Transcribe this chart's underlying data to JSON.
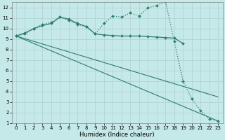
{
  "xlabel": "Humidex (Indice chaleur)",
  "ylabel": "",
  "background_color": "#c5e8e8",
  "grid_color": "#afd0d0",
  "line_color": "#2e7d6e",
  "xlim": [
    -0.5,
    23.5
  ],
  "ylim": [
    1,
    12.5
  ],
  "xticks": [
    0,
    1,
    2,
    3,
    4,
    5,
    6,
    7,
    8,
    9,
    10,
    11,
    12,
    13,
    14,
    15,
    16,
    17,
    18,
    19,
    20,
    21,
    22,
    23
  ],
  "yticks": [
    1,
    2,
    3,
    4,
    5,
    6,
    7,
    8,
    9,
    10,
    11,
    12
  ],
  "series": [
    {
      "x": [
        0,
        1,
        2,
        3,
        4,
        5,
        6,
        7,
        8,
        9,
        10,
        11,
        12,
        13,
        14,
        15,
        16,
        17,
        18,
        19
      ],
      "y": [
        9.3,
        9.6,
        10.0,
        10.3,
        10.5,
        11.1,
        10.9,
        10.5,
        10.2,
        9.5,
        9.4,
        9.35,
        9.3,
        9.3,
        9.3,
        9.25,
        9.2,
        9.15,
        9.1,
        8.6
      ],
      "marker": "D",
      "linestyle": "-",
      "markersize": 2.0,
      "linewidth": 0.9
    },
    {
      "x": [
        0,
        1,
        2,
        3,
        4,
        5,
        6,
        7,
        8,
        9,
        10,
        11,
        12,
        13,
        14,
        15,
        16,
        17,
        18,
        19,
        20,
        21,
        22,
        23
      ],
      "y": [
        9.3,
        9.5,
        10.0,
        10.4,
        10.6,
        11.1,
        10.8,
        10.4,
        10.2,
        9.5,
        10.5,
        11.2,
        11.1,
        11.5,
        11.2,
        12.0,
        12.2,
        12.6,
        8.8,
        5.0,
        3.3,
        2.2,
        1.4,
        1.2
      ],
      "marker": "D",
      "linestyle": ":",
      "markersize": 2.0,
      "linewidth": 0.9
    },
    {
      "x": [
        0,
        23
      ],
      "y": [
        9.3,
        1.2
      ],
      "marker": null,
      "linestyle": "-",
      "markersize": 0,
      "linewidth": 0.8
    },
    {
      "x": [
        0,
        23
      ],
      "y": [
        9.3,
        3.5
      ],
      "marker": null,
      "linestyle": "-",
      "markersize": 0,
      "linewidth": 0.8
    }
  ]
}
